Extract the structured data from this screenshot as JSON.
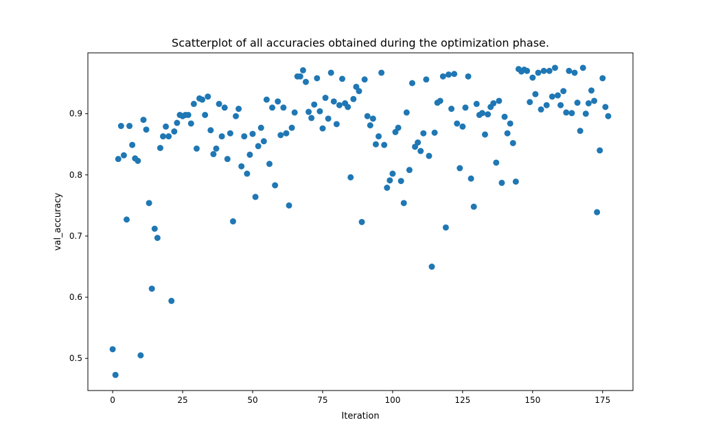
{
  "chart_data": {
    "type": "scatter",
    "title": "Scatterplot of all accuracies obtained during the optimization phase.",
    "xlabel": "Iteration",
    "ylabel": "val_accuracy",
    "xlim": [
      -8.85,
      185.85
    ],
    "ylim": [
      0.4475,
      0.9995
    ],
    "xticks": [
      0,
      25,
      50,
      75,
      100,
      125,
      150,
      175
    ],
    "xtick_labels": [
      "0",
      "25",
      "50",
      "75",
      "100",
      "125",
      "150",
      "175"
    ],
    "yticks": [
      0.5,
      0.6,
      0.7,
      0.8,
      0.9
    ],
    "ytick_labels": [
      "0.5",
      "0.6",
      "0.7",
      "0.8",
      "0.9"
    ],
    "grid": false,
    "marker_color": "#1f77b4",
    "x": [
      0,
      1,
      2,
      3,
      4,
      5,
      6,
      7,
      8,
      9,
      10,
      11,
      12,
      13,
      14,
      15,
      16,
      17,
      18,
      19,
      20,
      21,
      22,
      23,
      24,
      25,
      26,
      27,
      28,
      29,
      30,
      31,
      32,
      33,
      34,
      35,
      36,
      37,
      38,
      39,
      40,
      41,
      42,
      43,
      44,
      45,
      46,
      47,
      48,
      49,
      50,
      51,
      52,
      53,
      54,
      55,
      56,
      57,
      58,
      59,
      60,
      61,
      62,
      63,
      64,
      65,
      66,
      67,
      68,
      69,
      70,
      71,
      72,
      73,
      74,
      75,
      76,
      77,
      78,
      79,
      80,
      81,
      82,
      83,
      84,
      85,
      86,
      87,
      88,
      89,
      90,
      91,
      92,
      93,
      94,
      95,
      96,
      97,
      98,
      99,
      100,
      101,
      102,
      103,
      104,
      105,
      106,
      107,
      108,
      109,
      110,
      111,
      112,
      113,
      114,
      115,
      116,
      117,
      118,
      119,
      120,
      121,
      122,
      123,
      124,
      125,
      126,
      127,
      128,
      129,
      130,
      131,
      132,
      133,
      134,
      135,
      136,
      137,
      138,
      139,
      140,
      141,
      142,
      143,
      144,
      145,
      146,
      147,
      148,
      149,
      150,
      151,
      152,
      153,
      154,
      155,
      156,
      157,
      158,
      159,
      160,
      161,
      162,
      163,
      164,
      165,
      166,
      167,
      168,
      169,
      170,
      171,
      172,
      173,
      174,
      175,
      176,
      177
    ],
    "y": [
      0.515,
      0.473,
      0.826,
      0.88,
      0.832,
      0.727,
      0.88,
      0.849,
      0.827,
      0.823,
      0.505,
      0.89,
      0.874,
      0.754,
      0.614,
      0.712,
      0.697,
      0.844,
      0.863,
      0.879,
      0.863,
      0.594,
      0.871,
      0.885,
      0.898,
      0.896,
      0.898,
      0.898,
      0.884,
      0.916,
      0.843,
      0.925,
      0.923,
      0.898,
      0.928,
      0.873,
      0.834,
      0.843,
      0.916,
      0.863,
      0.91,
      0.826,
      0.868,
      0.724,
      0.896,
      0.908,
      0.814,
      0.863,
      0.802,
      0.833,
      0.867,
      0.764,
      0.847,
      0.877,
      0.855,
      0.923,
      0.818,
      0.91,
      0.783,
      0.92,
      0.865,
      0.91,
      0.868,
      0.75,
      0.877,
      0.902,
      0.961,
      0.961,
      0.971,
      0.952,
      0.903,
      0.893,
      0.915,
      0.958,
      0.904,
      0.876,
      0.926,
      0.892,
      0.967,
      0.92,
      0.883,
      0.914,
      0.957,
      0.917,
      0.911,
      0.796,
      0.924,
      0.944,
      0.937,
      0.723,
      0.956,
      0.896,
      0.881,
      0.892,
      0.85,
      0.863,
      0.967,
      0.849,
      0.779,
      0.791,
      0.802,
      0.87,
      0.877,
      0.79,
      0.754,
      0.902,
      0.808,
      0.95,
      0.846,
      0.853,
      0.839,
      0.868,
      0.956,
      0.831,
      0.65,
      0.869,
      0.918,
      0.921,
      0.961,
      0.714,
      0.964,
      0.908,
      0.965,
      0.884,
      0.811,
      0.879,
      0.91,
      0.961,
      0.794,
      0.748,
      0.916,
      0.898,
      0.901,
      0.866,
      0.899,
      0.911,
      0.917,
      0.82,
      0.921,
      0.787,
      0.895,
      0.868,
      0.884,
      0.852,
      0.789,
      0.973,
      0.969,
      0.972,
      0.97,
      0.919,
      0.959,
      0.932,
      0.967,
      0.907,
      0.97,
      0.914,
      0.97,
      0.928,
      0.975,
      0.93,
      0.914,
      0.937,
      0.902,
      0.97,
      0.901,
      0.967,
      0.918,
      0.872,
      0.975,
      0.9,
      0.917,
      0.938,
      0.921,
      0.739,
      0.84,
      0.958,
      0.911,
      0.896
    ]
  }
}
